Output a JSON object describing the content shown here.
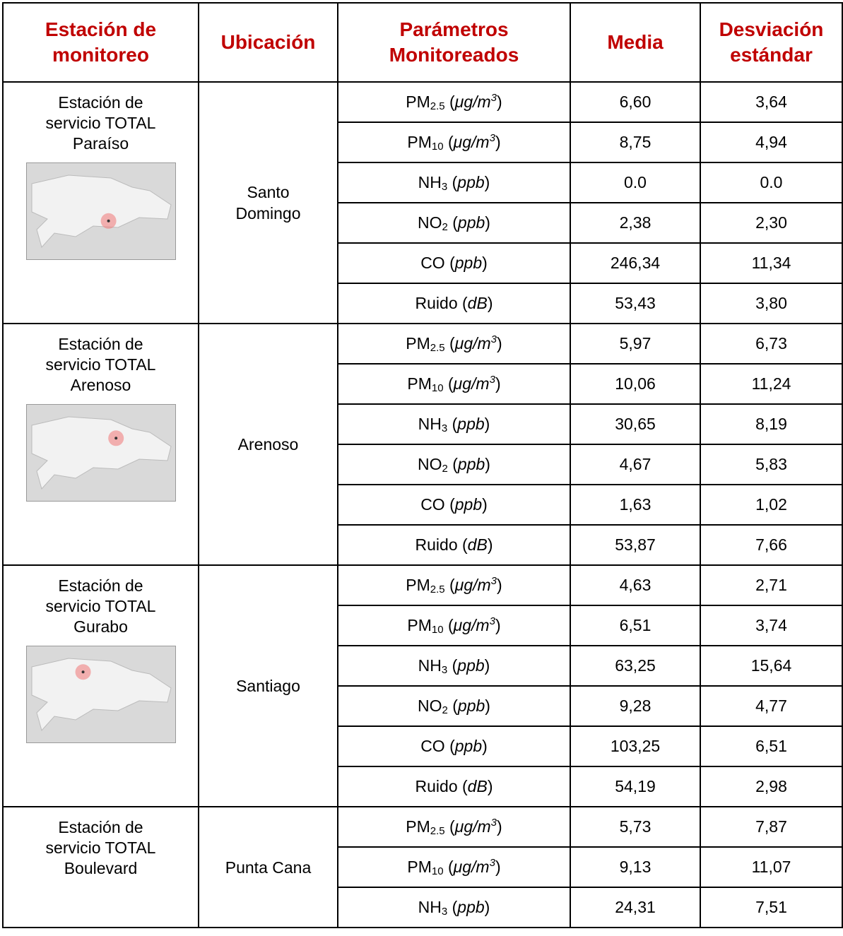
{
  "header": {
    "cells": [
      {
        "lines": [
          "Estación de",
          "monitoreo"
        ]
      },
      {
        "lines": [
          "Ubicación"
        ]
      },
      {
        "lines": [
          "Parámetros",
          "Monitoreados"
        ]
      },
      {
        "lines": [
          "Media"
        ]
      },
      {
        "lines": [
          "Desviación",
          "estándar"
        ]
      }
    ]
  },
  "stations": [
    {
      "name": [
        "Estación de",
        "servicio TOTAL",
        "Paraíso"
      ],
      "location": [
        "Santo",
        "Domingo"
      ],
      "rows": [
        {
          "param": [
            {
              "text": "PM"
            },
            {
              "text": "2.5",
              "style": "sub"
            },
            {
              "text": " ("
            },
            {
              "text": "μg/m",
              "style": "italic"
            },
            {
              "text": "3",
              "style": "sup"
            },
            {
              "text": ")"
            }
          ],
          "mean": "6,60",
          "sd": "3,64"
        },
        {
          "param": [
            {
              "text": "PM"
            },
            {
              "text": "10",
              "style": "sub"
            },
            {
              "text": " ("
            },
            {
              "text": "μg/m",
              "style": "italic"
            },
            {
              "text": "3",
              "style": "sup"
            },
            {
              "text": ")"
            }
          ],
          "mean": "8,75",
          "sd": "4,94"
        },
        {
          "param": [
            {
              "text": "NH"
            },
            {
              "text": "3",
              "style": "sub"
            },
            {
              "text": " ("
            },
            {
              "text": "ppb",
              "style": "italic"
            },
            {
              "text": ")"
            }
          ],
          "mean": "0.0",
          "sd": "0.0"
        },
        {
          "param": [
            {
              "text": "NO"
            },
            {
              "text": "2",
              "style": "sub"
            },
            {
              "text": " ("
            },
            {
              "text": "ppb",
              "style": "italic"
            },
            {
              "text": ")"
            }
          ],
          "mean": "2,38",
          "sd": "2,30"
        },
        {
          "param": [
            {
              "text": "CO ("
            },
            {
              "text": "ppb",
              "style": "italic"
            },
            {
              "text": ")"
            }
          ],
          "mean": "246,34",
          "sd": "11,34"
        },
        {
          "param": [
            {
              "text": "Ruido ("
            },
            {
              "text": "dB",
              "style": "italic"
            },
            {
              "text": ")"
            }
          ],
          "mean": "53,43",
          "sd": "3,80"
        }
      ]
    },
    {
      "name": [
        "Estación de",
        "servicio TOTAL",
        "Arenoso"
      ],
      "location": [
        "Arenoso"
      ],
      "rows": [
        {
          "param": [
            {
              "text": "PM"
            },
            {
              "text": "2.5",
              "style": "sub"
            },
            {
              "text": " ("
            },
            {
              "text": "μg/m",
              "style": "italic"
            },
            {
              "text": "3",
              "style": "sup"
            },
            {
              "text": ")"
            }
          ],
          "mean": "5,97",
          "sd": "6,73"
        },
        {
          "param": [
            {
              "text": "PM"
            },
            {
              "text": "10",
              "style": "sub"
            },
            {
              "text": " ("
            },
            {
              "text": "μg/m",
              "style": "italic"
            },
            {
              "text": "3",
              "style": "sup"
            },
            {
              "text": ")"
            }
          ],
          "mean": "10,06",
          "sd": "11,24"
        },
        {
          "param": [
            {
              "text": "NH"
            },
            {
              "text": "3",
              "style": "sub"
            },
            {
              "text": " ("
            },
            {
              "text": "ppb",
              "style": "italic"
            },
            {
              "text": ")"
            }
          ],
          "mean": "30,65",
          "sd": "8,19"
        },
        {
          "param": [
            {
              "text": "NO"
            },
            {
              "text": "2",
              "style": "sub"
            },
            {
              "text": " ("
            },
            {
              "text": "ppb",
              "style": "italic"
            },
            {
              "text": ")"
            }
          ],
          "mean": "4,67",
          "sd": "5,83"
        },
        {
          "param": [
            {
              "text": "CO ("
            },
            {
              "text": "ppb",
              "style": "italic"
            },
            {
              "text": ")"
            }
          ],
          "mean": "1,63",
          "sd": "1,02"
        },
        {
          "param": [
            {
              "text": "Ruido ("
            },
            {
              "text": "dB",
              "style": "italic"
            },
            {
              "text": ")"
            }
          ],
          "mean": "53,87",
          "sd": "7,66"
        }
      ]
    },
    {
      "name": [
        "Estación de",
        "servicio TOTAL",
        "Gurabo"
      ],
      "location": [
        "Santiago"
      ],
      "rows": [
        {
          "param": [
            {
              "text": "PM"
            },
            {
              "text": "2.5",
              "style": "sub"
            },
            {
              "text": " ("
            },
            {
              "text": "μg/m",
              "style": "italic"
            },
            {
              "text": "3",
              "style": "sup"
            },
            {
              "text": ")"
            }
          ],
          "mean": "4,63",
          "sd": "2,71"
        },
        {
          "param": [
            {
              "text": "PM"
            },
            {
              "text": "10",
              "style": "sub"
            },
            {
              "text": " ("
            },
            {
              "text": "μg/m",
              "style": "italic"
            },
            {
              "text": "3",
              "style": "sup"
            },
            {
              "text": ")"
            }
          ],
          "mean": "6,51",
          "sd": "3,74"
        },
        {
          "param": [
            {
              "text": "NH"
            },
            {
              "text": "3",
              "style": "sub"
            },
            {
              "text": " ("
            },
            {
              "text": "ppb",
              "style": "italic"
            },
            {
              "text": ")"
            }
          ],
          "mean": "63,25",
          "sd": "15,64"
        },
        {
          "param": [
            {
              "text": "NO"
            },
            {
              "text": "2",
              "style": "sub"
            },
            {
              "text": " ("
            },
            {
              "text": "ppb",
              "style": "italic"
            },
            {
              "text": ")"
            }
          ],
          "mean": "9,28",
          "sd": "4,77"
        },
        {
          "param": [
            {
              "text": "CO ("
            },
            {
              "text": "ppb",
              "style": "italic"
            },
            {
              "text": ")"
            }
          ],
          "mean": "103,25",
          "sd": "6,51"
        },
        {
          "param": [
            {
              "text": "Ruido ("
            },
            {
              "text": "dB",
              "style": "italic"
            },
            {
              "text": ")"
            }
          ],
          "mean": "54,19",
          "sd": "2,98"
        }
      ]
    },
    {
      "name": [
        "Estación de",
        "servicio TOTAL",
        "Boulevard"
      ],
      "location": [
        "Punta Cana"
      ],
      "rows": [
        {
          "param": [
            {
              "text": "PM"
            },
            {
              "text": "2.5",
              "style": "sub"
            },
            {
              "text": " ("
            },
            {
              "text": "μg/m",
              "style": "italic"
            },
            {
              "text": "3",
              "style": "sup"
            },
            {
              "text": ")"
            }
          ],
          "mean": "5,73",
          "sd": "7,87"
        },
        {
          "param": [
            {
              "text": "PM"
            },
            {
              "text": "10",
              "style": "sub"
            },
            {
              "text": " ("
            },
            {
              "text": "μg/m",
              "style": "italic"
            },
            {
              "text": "3",
              "style": "sup"
            },
            {
              "text": ")"
            }
          ],
          "mean": "9,13",
          "sd": "11,07"
        },
        {
          "param": [
            {
              "text": "NH"
            },
            {
              "text": "3",
              "style": "sub"
            },
            {
              "text": " ("
            },
            {
              "text": "ppb",
              "style": "italic"
            },
            {
              "text": ")"
            }
          ],
          "mean": "24,31",
          "sd": "7,51"
        }
      ]
    }
  ]
}
